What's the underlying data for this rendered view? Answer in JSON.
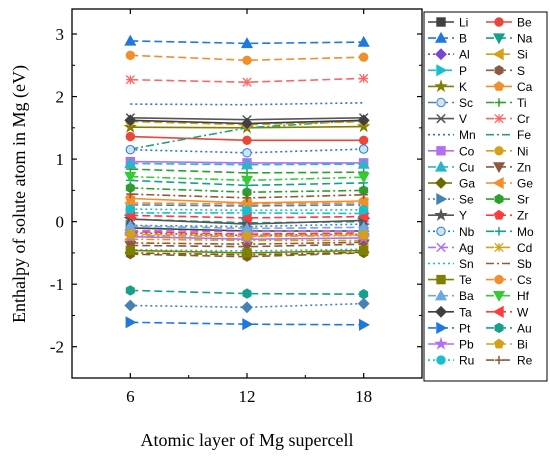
{
  "chart_data": {
    "type": "line",
    "title": "",
    "xlabel": "Atomic layer of Mg supercell",
    "ylabel": "Enthalpy of solute atom in Mg (eV)",
    "x": [
      6,
      12,
      18
    ],
    "xtick_labels": [
      "6",
      "12",
      "18"
    ],
    "xlim": [
      3,
      21
    ],
    "ylim": [
      -2.5,
      3.4
    ],
    "yticks": [
      -2,
      -1,
      0,
      1,
      2,
      3
    ],
    "ytick_labels": [
      "-2",
      "-1",
      "0",
      "1",
      "2",
      "3"
    ],
    "grid": false,
    "legend_position": "right",
    "legend_columns": 2,
    "series": [
      {
        "name": "Li",
        "color": "#404040",
        "marker": "square",
        "dash": "solid",
        "values": [
          -0.1,
          -0.15,
          -0.15
        ]
      },
      {
        "name": "Be",
        "color": "#e8473a",
        "marker": "circle",
        "dash": "solid",
        "values": [
          1.36,
          1.3,
          1.3
        ]
      },
      {
        "name": "B",
        "color": "#1f77e0",
        "marker": "triangle-up",
        "dash": "dash",
        "values": [
          2.89,
          2.85,
          2.87
        ]
      },
      {
        "name": "Na",
        "color": "#14a08a",
        "marker": "triangle-down",
        "dash": "dash",
        "values": [
          0.04,
          -0.02,
          0.0
        ]
      },
      {
        "name": "Al",
        "color": "#7b44d6",
        "marker": "diamond",
        "dash": "dot",
        "values": [
          -0.18,
          -0.22,
          -0.2
        ]
      },
      {
        "name": "Si",
        "color": "#d4a017",
        "marker": "triangle-left",
        "dash": "dashdot",
        "values": [
          -0.28,
          -0.3,
          -0.3
        ]
      },
      {
        "name": "P",
        "color": "#17becf",
        "marker": "triangle-right",
        "dash": "dashdot",
        "values": [
          0.14,
          0.14,
          0.13
        ]
      },
      {
        "name": "S",
        "color": "#8c5a3c",
        "marker": "hexagon",
        "dash": "dash",
        "values": [
          -0.52,
          -0.56,
          -0.5
        ]
      },
      {
        "name": "K",
        "color": "#808000",
        "marker": "star",
        "dash": "solid",
        "values": [
          1.51,
          1.5,
          1.52
        ]
      },
      {
        "name": "Ca",
        "color": "#f28e2b",
        "marker": "pentagon",
        "dash": "solid",
        "values": [
          0.37,
          0.3,
          0.33
        ]
      },
      {
        "name": "Sc",
        "color": "#4682b4",
        "marker": "circle-half",
        "dash": "dash",
        "values": [
          0.27,
          0.25,
          0.27
        ]
      },
      {
        "name": "Ti",
        "color": "#2ca02c",
        "marker": "plus",
        "dash": "dash",
        "values": [
          0.84,
          0.78,
          0.79
        ]
      },
      {
        "name": "V",
        "color": "#555555",
        "marker": "cross",
        "dash": "solid",
        "values": [
          1.66,
          1.63,
          1.66
        ]
      },
      {
        "name": "Cr",
        "color": "#ff6666",
        "marker": "asterisk",
        "dash": "dash",
        "values": [
          2.27,
          2.23,
          2.29
        ]
      },
      {
        "name": "Mn",
        "color": "#2a6fd6",
        "marker": "none",
        "dash": "dot",
        "values": [
          1.88,
          1.87,
          1.9
        ]
      },
      {
        "name": "Fe",
        "color": "#20a080",
        "marker": "none",
        "dash": "dashdot",
        "values": [
          1.16,
          1.5,
          1.62
        ]
      },
      {
        "name": "Co",
        "color": "#b36ff0",
        "marker": "square",
        "dash": "solid",
        "values": [
          0.96,
          0.94,
          0.94
        ]
      },
      {
        "name": "Ni",
        "color": "#d4a017",
        "marker": "circle",
        "dash": "dash",
        "values": [
          1.6,
          1.55,
          1.6
        ]
      },
      {
        "name": "Cu",
        "color": "#2bb5c8",
        "marker": "triangle-up",
        "dash": "dash",
        "values": [
          0.93,
          0.91,
          0.92
        ]
      },
      {
        "name": "Zn",
        "color": "#8c5a3c",
        "marker": "triangle-down",
        "dash": "dash",
        "values": [
          -0.38,
          -0.4,
          -0.36
        ]
      },
      {
        "name": "Ga",
        "color": "#6b6b00",
        "marker": "diamond",
        "dash": "dashdot",
        "values": [
          -0.5,
          -0.53,
          -0.49
        ]
      },
      {
        "name": "Ge",
        "color": "#f28e2b",
        "marker": "triangle-left",
        "dash": "dash",
        "values": [
          0.3,
          0.28,
          0.3
        ]
      },
      {
        "name": "Se",
        "color": "#4682b4",
        "marker": "triangle-right",
        "dash": "dot",
        "values": [
          -0.06,
          -0.08,
          -0.04
        ]
      },
      {
        "name": "Sr",
        "color": "#2ca02c",
        "marker": "hexagon",
        "dash": "dashdot",
        "values": [
          0.54,
          0.47,
          0.5
        ]
      },
      {
        "name": "Y",
        "color": "#555555",
        "marker": "star",
        "dash": "solid",
        "values": [
          0.04,
          -0.04,
          0.02
        ]
      },
      {
        "name": "Zr",
        "color": "#ff3b3b",
        "marker": "pentagon",
        "dash": "dash",
        "values": [
          -0.16,
          -0.2,
          -0.18
        ]
      },
      {
        "name": "Nb",
        "color": "#1f77e0",
        "marker": "circle-half",
        "dash": "dot",
        "values": [
          1.15,
          1.1,
          1.16
        ]
      },
      {
        "name": "Mo",
        "color": "#14a08a",
        "marker": "plus",
        "dash": "dash",
        "values": [
          0.66,
          0.58,
          0.62
        ]
      },
      {
        "name": "Ag",
        "color": "#b36ff0",
        "marker": "cross",
        "dash": "dash",
        "values": [
          -0.14,
          -0.16,
          -0.15
        ]
      },
      {
        "name": "Cd",
        "color": "#d4a017",
        "marker": "asterisk",
        "dash": "dashdot",
        "values": [
          -0.22,
          -0.24,
          -0.22
        ]
      },
      {
        "name": "Sn",
        "color": "#17becf",
        "marker": "none",
        "dash": "dot",
        "values": [
          -0.45,
          -0.47,
          -0.44
        ]
      },
      {
        "name": "Sb",
        "color": "#8c5a3c",
        "marker": "none",
        "dash": "dashdot",
        "values": [
          -0.34,
          -0.36,
          -0.33
        ]
      },
      {
        "name": "Te",
        "color": "#808000",
        "marker": "square",
        "dash": "solid",
        "values": [
          -0.46,
          -0.5,
          -0.46
        ]
      },
      {
        "name": "Cs",
        "color": "#f28e2b",
        "marker": "circle",
        "dash": "dash",
        "values": [
          2.66,
          2.58,
          2.63
        ]
      },
      {
        "name": "Ba",
        "color": "#6fa8dc",
        "marker": "triangle-up",
        "dash": "dash",
        "values": [
          -0.07,
          -0.11,
          -0.09
        ]
      },
      {
        "name": "Hf",
        "color": "#33cc33",
        "marker": "triangle-down",
        "dash": "dashdot",
        "values": [
          0.72,
          0.66,
          0.71
        ]
      },
      {
        "name": "Ta",
        "color": "#404040",
        "marker": "diamond",
        "dash": "solid",
        "values": [
          1.62,
          1.57,
          1.62
        ]
      },
      {
        "name": "W",
        "color": "#ff3b3b",
        "marker": "triangle-left",
        "dash": "dash",
        "values": [
          0.1,
          0.06,
          0.08
        ]
      },
      {
        "name": "Pt",
        "color": "#1f77e0",
        "marker": "triangle-right",
        "dash": "dash",
        "values": [
          -1.61,
          -1.64,
          -1.65
        ]
      },
      {
        "name": "Au",
        "color": "#14a08a",
        "marker": "hexagon",
        "dash": "dash",
        "values": [
          -1.1,
          -1.15,
          -1.16
        ]
      },
      {
        "name": "Pb",
        "color": "#b36ff0",
        "marker": "star",
        "dash": "solid",
        "values": [
          -0.24,
          -0.28,
          -0.26
        ]
      },
      {
        "name": "Bi",
        "color": "#d4a017",
        "marker": "pentagon",
        "dash": "dash",
        "values": [
          -0.2,
          -0.23,
          -0.21
        ]
      },
      {
        "name": "Ru",
        "color": "#17becf",
        "marker": "circle",
        "dash": "dot",
        "values": [
          0.2,
          0.18,
          0.19
        ]
      },
      {
        "name": "Re",
        "color": "#8c5a3c",
        "marker": "plus",
        "dash": "dashdot",
        "values": [
          0.44,
          0.38,
          0.43
        ]
      }
    ]
  },
  "extra_series": [
    {
      "color": "#4682b4",
      "marker": "diamond",
      "dash": "dot",
      "values": [
        -1.34,
        -1.37,
        -1.31
      ]
    }
  ]
}
